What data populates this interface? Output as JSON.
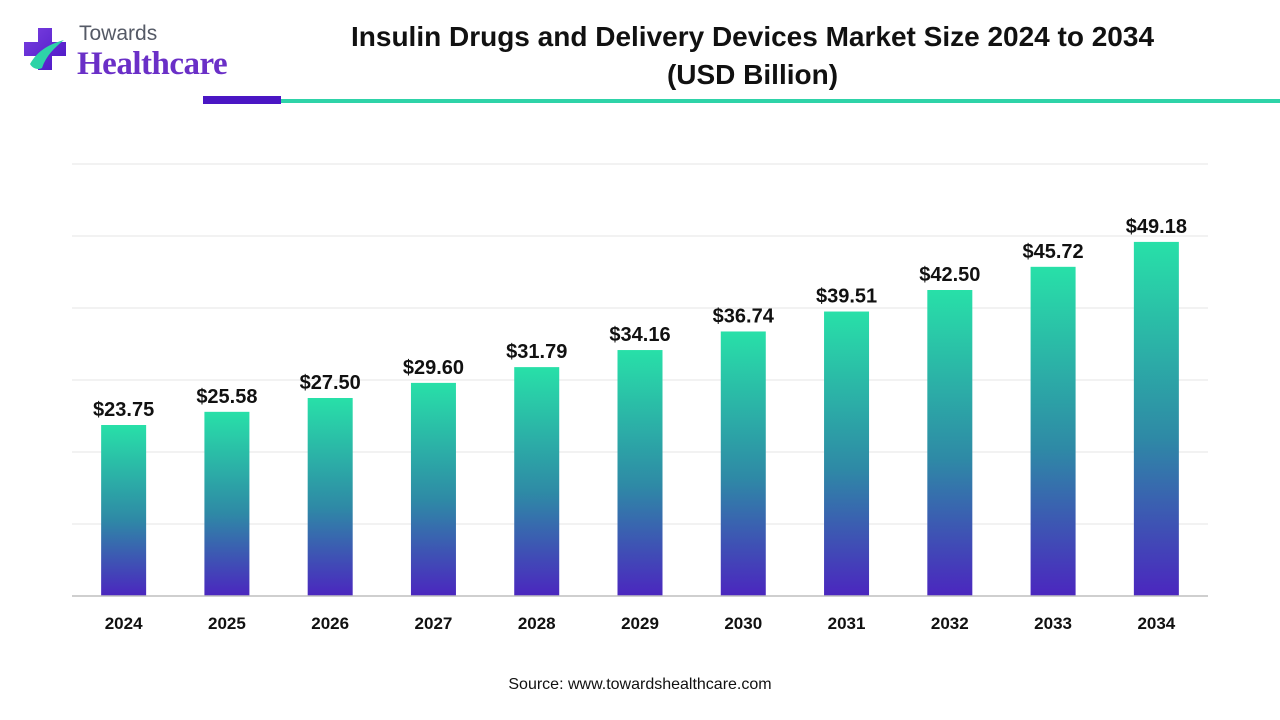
{
  "header": {
    "logo_text_top": "Towards",
    "logo_text_main": "Healthcare",
    "title_line1": "Insulin Drugs and Delivery Devices Market Size 2024 to 2034",
    "title_line2": "(USD Billion)"
  },
  "footer": {
    "source": "Source: www.towardshealthcare.com"
  },
  "colors": {
    "brand_purple": "#4a16c4",
    "brand_teal": "#2ed3a8",
    "bar_top": "#28e0a8",
    "bar_mid": "#2e8aa6",
    "bar_bottom": "#4b26bf",
    "grid": "#e6e6e6",
    "axis": "#bfbfbf"
  },
  "chart_data": {
    "type": "bar",
    "title": "Insulin Drugs and Delivery Devices Market Size 2024 to 2034 (USD Billion)",
    "categories": [
      "2024",
      "2025",
      "2026",
      "2027",
      "2028",
      "2029",
      "2030",
      "2031",
      "2032",
      "2033",
      "2034"
    ],
    "values": [
      23.75,
      25.58,
      27.5,
      29.6,
      31.79,
      34.16,
      36.74,
      39.51,
      42.5,
      45.72,
      49.18
    ],
    "data_labels": [
      "$23.75",
      "$25.58",
      "$27.50",
      "$29.60",
      "$31.79",
      "$34.16",
      "$36.74",
      "$39.51",
      "$42.50",
      "$45.72",
      "$49.18"
    ],
    "xlabel": "",
    "ylabel": "",
    "ylim": [
      0,
      60
    ],
    "grid": true,
    "legend": "none"
  }
}
